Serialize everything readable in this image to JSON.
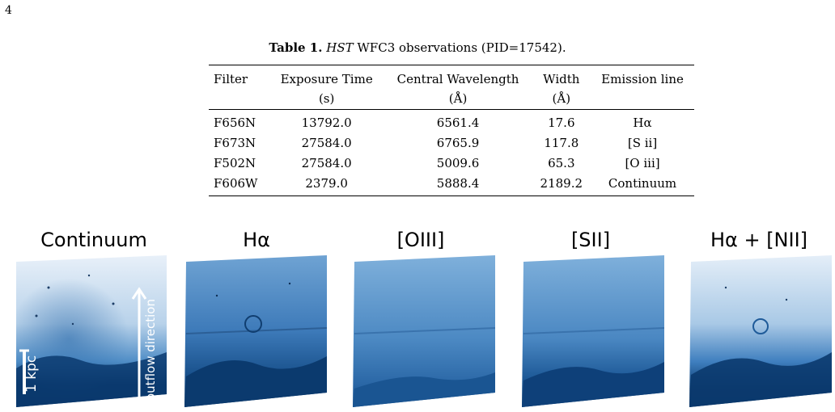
{
  "page_number": "4",
  "table": {
    "caption_label": "Table 1.",
    "caption_italic": "HST",
    "caption_rest": "WFC3 observations (PID=17542).",
    "headers": [
      "Filter",
      "Exposure Time",
      "Central Wavelength",
      "Width",
      "Emission line"
    ],
    "units": [
      "",
      "(s)",
      "(Å)",
      "(Å)",
      ""
    ],
    "rows": [
      [
        "F656N",
        "13792.0",
        "6561.4",
        "17.6",
        "Hα"
      ],
      [
        "F673N",
        "27584.0",
        "6765.9",
        "117.8",
        "[S ii]"
      ],
      [
        "F502N",
        "27584.0",
        "5009.6",
        "65.3",
        "[O iii]"
      ],
      [
        "F606W",
        "2379.0",
        "5888.4",
        "2189.2",
        "Continuum"
      ]
    ]
  },
  "figure": {
    "panels": [
      {
        "title": "Continuum"
      },
      {
        "title": "Hα"
      },
      {
        "title": "[OIII]"
      },
      {
        "title": "[SII]"
      },
      {
        "title": "Hα + [NII]"
      }
    ],
    "scale_bar_label": "1 kpc",
    "arrow_label": "outflow direction",
    "colors": {
      "dark": "#0b3a6e",
      "mid": "#3a86c4",
      "light": "#e4eef8"
    }
  }
}
